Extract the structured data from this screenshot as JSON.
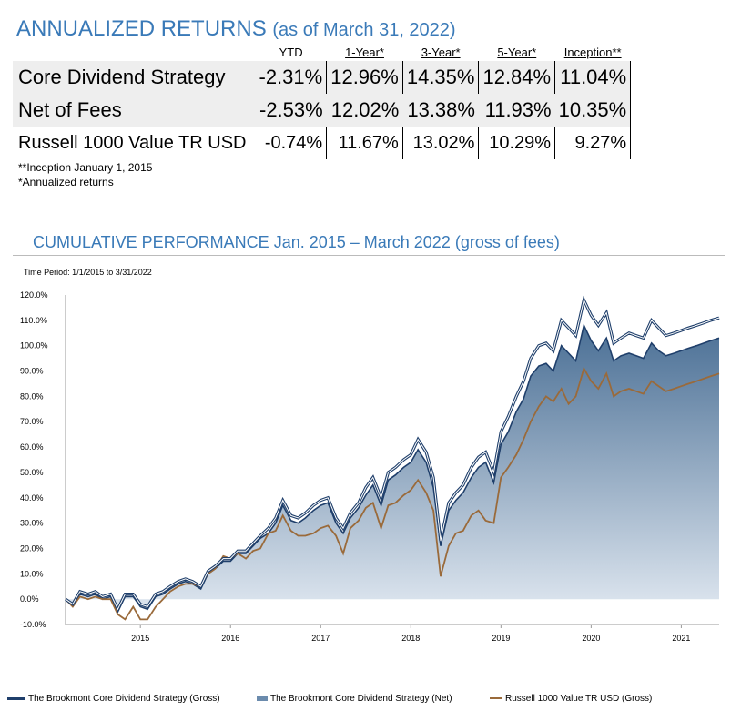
{
  "returns": {
    "title": "ANNUALIZED RETURNS",
    "subtitle": "(as of March 31, 2022)",
    "headers": [
      "YTD",
      "1-Year*",
      "3-Year*",
      "5-Year*",
      "Inception**"
    ],
    "rows": [
      {
        "name": "Core Dividend Strategy",
        "values": [
          "-2.31%",
          "12.96%",
          "14.35%",
          "12.84%",
          "11.04%"
        ]
      },
      {
        "name": "Net of Fees",
        "values": [
          "-2.53%",
          "12.02%",
          "13.38%",
          "11.93%",
          "10.35%"
        ]
      },
      {
        "name": "Russell 1000 Value TR USD",
        "values": [
          "-0.74%",
          "11.67%",
          "13.02%",
          "10.29%",
          "9.27%"
        ]
      }
    ],
    "note_inception": "**Inception January 1, 2015",
    "note_annualized": "*Annualized returns"
  },
  "chart_title": "CUMULATIVE PERFORMANCE Jan. 2015 – March 2022 (gross of fees)",
  "colors": {
    "gross": "#1f3f6b",
    "net_fill": "#4a6f95",
    "russell": "#9a6a3a",
    "title": "#3a7ab8"
  },
  "chart_data": {
    "type": "line",
    "title": "CUMULATIVE PERFORMANCE Jan. 2015 – March 2022 (gross of fees)",
    "time_period": "Time Period: 1/1/2015 to 3/31/2022",
    "ylim": [
      -10,
      120
    ],
    "y_ticks": [
      "-10.0%",
      "0.0%",
      "10.0%",
      "20.0%",
      "30.0%",
      "40.0%",
      "50.0%",
      "60.0%",
      "70.0%",
      "80.0%",
      "90.0%",
      "100.0%",
      "110.0%",
      "120.0%"
    ],
    "x_range": [
      2014.17,
      2021.42
    ],
    "x_ticks": [
      2015,
      2016,
      2017,
      2018,
      2019,
      2020,
      2021
    ],
    "x_tick_labels": [
      "2015",
      "2016",
      "2017",
      "2018",
      "2019",
      "2020",
      "2021"
    ],
    "series": [
      {
        "name": "The Brookmont Core Dividend Strategy (Gross)",
        "x": [
          2014.17,
          2014.25,
          2014.33,
          2014.42,
          2014.5,
          2014.58,
          2014.67,
          2014.75,
          2014.83,
          2014.92,
          2015.0,
          2015.08,
          2015.17,
          2015.25,
          2015.33,
          2015.42,
          2015.5,
          2015.58,
          2015.67,
          2015.75,
          2015.83,
          2015.92,
          2016.0,
          2016.08,
          2016.17,
          2016.25,
          2016.33,
          2016.42,
          2016.5,
          2016.58,
          2016.67,
          2016.75,
          2016.83,
          2016.92,
          2017.0,
          2017.08,
          2017.17,
          2017.25,
          2017.33,
          2017.42,
          2017.5,
          2017.58,
          2017.67,
          2017.75,
          2017.83,
          2017.92,
          2018.0,
          2018.08,
          2018.17,
          2018.25,
          2018.33,
          2018.42,
          2018.5,
          2018.58,
          2018.67,
          2018.75,
          2018.83,
          2018.92,
          2019.0,
          2019.08,
          2019.17,
          2019.25,
          2019.33,
          2019.42,
          2019.5,
          2019.58,
          2019.67,
          2019.75,
          2019.83,
          2019.92,
          2020.0,
          2020.08,
          2020.17,
          2020.25,
          2020.33,
          2020.42,
          2020.5,
          2020.58,
          2020.67,
          2020.75,
          2020.83,
          2020.92,
          2021.0,
          2021.08,
          2021.17,
          2021.25,
          2021.33,
          2021.42
        ],
        "values": [
          0,
          -2,
          3,
          2,
          3,
          1,
          2,
          -4,
          2,
          2,
          -2,
          -3,
          2,
          3,
          5,
          7,
          8,
          7,
          5,
          11,
          13,
          16,
          16,
          19,
          19,
          22,
          25,
          28,
          32,
          39,
          33,
          32,
          34,
          37,
          39,
          40,
          32,
          28,
          34,
          38,
          44,
          48,
          40,
          50,
          52,
          55,
          57,
          63,
          58,
          48,
          23,
          38,
          42,
          45,
          52,
          56,
          58,
          50,
          66,
          72,
          80,
          86,
          95,
          100,
          101,
          98,
          110,
          107,
          104,
          118,
          112,
          108,
          113,
          101,
          103,
          105,
          104,
          103,
          110,
          107,
          104,
          105,
          106,
          107,
          108,
          109,
          110,
          111
        ]
      },
      {
        "name": "The Brookmont Core Dividend Strategy (Net)",
        "x": [
          2014.17,
          2014.25,
          2014.33,
          2014.42,
          2014.5,
          2014.58,
          2014.67,
          2014.75,
          2014.83,
          2014.92,
          2015.0,
          2015.08,
          2015.17,
          2015.25,
          2015.33,
          2015.42,
          2015.5,
          2015.58,
          2015.67,
          2015.75,
          2015.83,
          2015.92,
          2016.0,
          2016.08,
          2016.17,
          2016.25,
          2016.33,
          2016.42,
          2016.5,
          2016.58,
          2016.67,
          2016.75,
          2016.83,
          2016.92,
          2017.0,
          2017.08,
          2017.17,
          2017.25,
          2017.33,
          2017.42,
          2017.5,
          2017.58,
          2017.67,
          2017.75,
          2017.83,
          2017.92,
          2018.0,
          2018.08,
          2018.17,
          2018.25,
          2018.33,
          2018.42,
          2018.5,
          2018.58,
          2018.67,
          2018.75,
          2018.83,
          2018.92,
          2019.0,
          2019.08,
          2019.17,
          2019.25,
          2019.33,
          2019.42,
          2019.5,
          2019.58,
          2019.67,
          2019.75,
          2019.83,
          2019.92,
          2020.0,
          2020.08,
          2020.17,
          2020.25,
          2020.33,
          2020.42,
          2020.5,
          2020.58,
          2020.67,
          2020.75,
          2020.83,
          2020.92,
          2021.0,
          2021.08,
          2021.17,
          2021.25,
          2021.33,
          2021.42
        ],
        "values": [
          0,
          -2,
          2,
          1,
          2,
          0,
          1,
          -5,
          1,
          1,
          -3,
          -4,
          1,
          2,
          4,
          6,
          7,
          6,
          4,
          10,
          12,
          15,
          15,
          18,
          18,
          21,
          24,
          26,
          30,
          37,
          31,
          30,
          32,
          35,
          37,
          38,
          30,
          26,
          32,
          36,
          41,
          45,
          37,
          47,
          49,
          52,
          54,
          59,
          54,
          44,
          21,
          35,
          39,
          42,
          48,
          52,
          54,
          46,
          61,
          66,
          74,
          79,
          88,
          92,
          93,
          90,
          100,
          97,
          94,
          108,
          102,
          98,
          103,
          94,
          96,
          97,
          96,
          95,
          101,
          98,
          96,
          97,
          98,
          99,
          100,
          101,
          102,
          103
        ]
      },
      {
        "name": "Russell 1000 Value TR USD (Gross)",
        "x": [
          2014.17,
          2014.25,
          2014.33,
          2014.42,
          2014.5,
          2014.58,
          2014.67,
          2014.75,
          2014.83,
          2014.92,
          2015.0,
          2015.08,
          2015.17,
          2015.25,
          2015.33,
          2015.42,
          2015.5,
          2015.58,
          2015.67,
          2015.75,
          2015.83,
          2015.92,
          2016.0,
          2016.08,
          2016.17,
          2016.25,
          2016.33,
          2016.42,
          2016.5,
          2016.58,
          2016.67,
          2016.75,
          2016.83,
          2016.92,
          2017.0,
          2017.08,
          2017.17,
          2017.25,
          2017.33,
          2017.42,
          2017.5,
          2017.58,
          2017.67,
          2017.75,
          2017.83,
          2017.92,
          2018.0,
          2018.08,
          2018.17,
          2018.25,
          2018.33,
          2018.42,
          2018.5,
          2018.58,
          2018.67,
          2018.75,
          2018.83,
          2018.92,
          2019.0,
          2019.08,
          2019.17,
          2019.25,
          2019.33,
          2019.42,
          2019.5,
          2019.58,
          2019.67,
          2019.75,
          2019.83,
          2019.92,
          2020.0,
          2020.08,
          2020.17,
          2020.25,
          2020.33,
          2020.42,
          2020.5,
          2020.58,
          2020.67,
          2020.75,
          2020.83,
          2020.92,
          2021.0,
          2021.08,
          2021.17,
          2021.25,
          2021.33,
          2021.42
        ],
        "values": [
          0,
          -3,
          1,
          0,
          1,
          0,
          0,
          -6,
          -8,
          -3,
          -8,
          -8,
          -3,
          0,
          3,
          5,
          6,
          6,
          5,
          10,
          12,
          17,
          16,
          18,
          16,
          19,
          20,
          26,
          27,
          33,
          27,
          25,
          25,
          26,
          28,
          29,
          25,
          18,
          28,
          31,
          36,
          38,
          28,
          37,
          38,
          41,
          43,
          47,
          42,
          35,
          9,
          21,
          26,
          27,
          33,
          35,
          31,
          30,
          48,
          52,
          57,
          63,
          70,
          76,
          80,
          78,
          83,
          77,
          80,
          91,
          86,
          83,
          89,
          80,
          82,
          83,
          82,
          81,
          86,
          84,
          82,
          83,
          84,
          85,
          86,
          87,
          88,
          89
        ]
      }
    ],
    "legend": [
      "The Brookmont Core Dividend Strategy (Gross)",
      "The Brookmont Core Dividend Strategy (Net)",
      "Russell 1000 Value TR USD (Gross)"
    ]
  }
}
